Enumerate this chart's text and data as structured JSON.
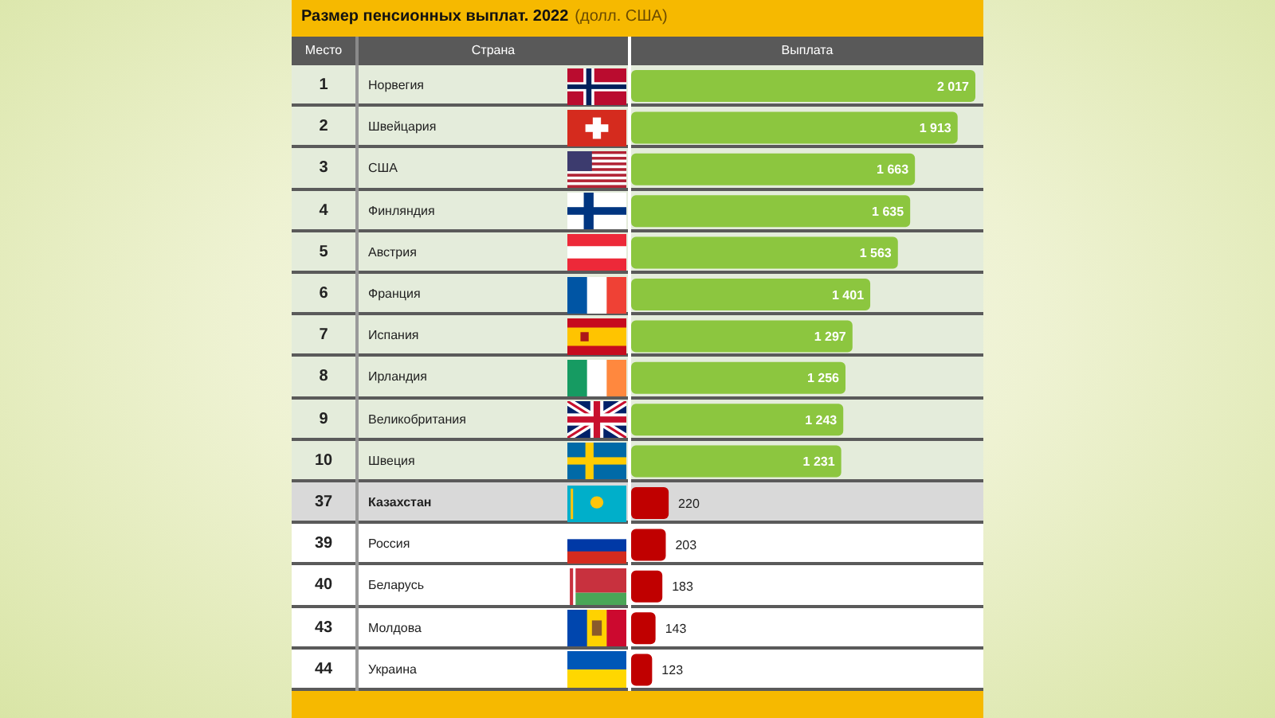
{
  "chart_data": {
    "type": "bar",
    "orientation": "horizontal",
    "title": "Размер пенсионных выплат. 2022",
    "subtitle": "(долл. США)",
    "xlabel": "Выплата",
    "ylabel": "Страна",
    "annotations": [
      "Место"
    ],
    "categories": [
      "Норвегия",
      "Швейцария",
      "США",
      "Финляндия",
      "Австрия",
      "Франция",
      "Испания",
      "Ирландия",
      "Великобритания",
      "Швеция",
      "Казахстан",
      "Россия",
      "Беларусь",
      "Молдова",
      "Украина"
    ],
    "y2_categories": [
      "1",
      "2",
      "3",
      "4",
      "5",
      "6",
      "7",
      "8",
      "9",
      "10",
      "37",
      "39",
      "40",
      "43",
      "44"
    ],
    "values": [
      2017,
      1913,
      1663,
      1635,
      1563,
      1401,
      1297,
      1256,
      1243,
      1231,
      220,
      203,
      183,
      143,
      123
    ],
    "value_labels": [
      "2 017",
      "1 913",
      "1 663",
      "1 635",
      "1 563",
      "1 401",
      "1 297",
      "1 256",
      "1 243",
      "1 231",
      "220",
      "203",
      "183",
      "143",
      "123"
    ],
    "colors": [
      "#8cc63f",
      "#8cc63f",
      "#8cc63f",
      "#8cc63f",
      "#8cc63f",
      "#8cc63f",
      "#8cc63f",
      "#8cc63f",
      "#8cc63f",
      "#8cc63f",
      "#c00000",
      "#c00000",
      "#c00000",
      "#c00000",
      "#c00000"
    ],
    "bands": [
      {
        "axis": "y",
        "from": "Норвегия",
        "to": "Швеция",
        "color": "#e4ecdb"
      },
      {
        "axis": "y",
        "from": "Казахстан",
        "to": "Казахстан",
        "color": "#d9d9d9"
      }
    ],
    "tick_labels": "y"
  }
}
